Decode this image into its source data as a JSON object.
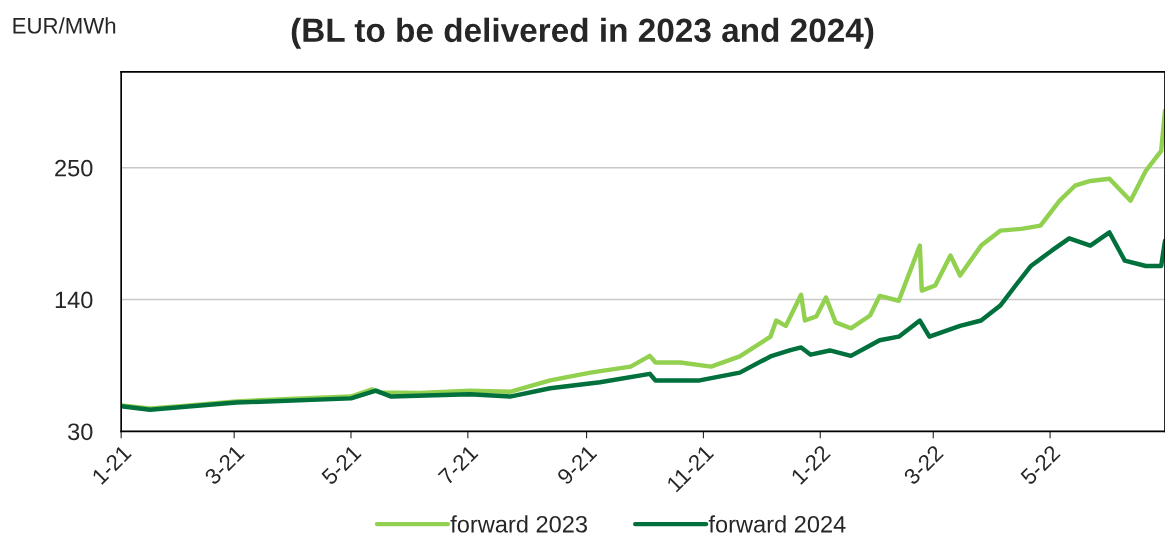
{
  "chart_data": {
    "type": "line",
    "title": "(BL to be delivered in 2023 and 2024)",
    "ylabel": "EUR/MWh",
    "ylim": [
      30,
      330
    ],
    "yticks": [
      30,
      140,
      250
    ],
    "xlim": [
      "2021-01-01",
      "2022-06-30"
    ],
    "xticks": [
      {
        "value": "2021-01-01",
        "label": "1-21"
      },
      {
        "value": "2021-03-01",
        "label": "3-21"
      },
      {
        "value": "2021-05-01",
        "label": "5-21"
      },
      {
        "value": "2021-07-01",
        "label": "7-21"
      },
      {
        "value": "2021-09-01",
        "label": "9-21"
      },
      {
        "value": "2021-11-01",
        "label": "11-21"
      },
      {
        "value": "2022-01-01",
        "label": "1-22"
      },
      {
        "value": "2022-03-01",
        "label": "3-22"
      },
      {
        "value": "2022-05-01",
        "label": "5-22"
      }
    ],
    "grid": "y",
    "legend": "bottom",
    "marker": "none",
    "line_style": "solid",
    "series": [
      {
        "name": "forward 2023",
        "color": "#92d050",
        "x": [
          "2021-01-01",
          "2021-01-16",
          "2021-02-01",
          "2021-03-02",
          "2021-04-05",
          "2021-05-01",
          "2021-05-12",
          "2021-05-16",
          "2021-06-06",
          "2021-07-02",
          "2021-07-23",
          "2021-08-13",
          "2021-09-03",
          "2021-09-24",
          "2021-10-04",
          "2021-10-07",
          "2021-10-20",
          "2021-11-05",
          "2021-11-20",
          "2021-12-06",
          "2021-12-09",
          "2021-12-14",
          "2021-12-22",
          "2021-12-24",
          "2021-12-30",
          "2022-01-04",
          "2022-01-09",
          "2022-01-17",
          "2022-01-27",
          "2022-02-01",
          "2022-02-11",
          "2022-02-22",
          "2022-02-23",
          "2022-03-02",
          "2022-03-10",
          "2022-03-15",
          "2022-03-26",
          "2022-04-05",
          "2022-04-16",
          "2022-04-26",
          "2022-05-06",
          "2022-05-14",
          "2022-05-22",
          "2022-06-01",
          "2022-06-12",
          "2022-06-20",
          "2022-06-28",
          "2022-06-30"
        ],
        "values": [
          51.7,
          49,
          51,
          55,
          57.5,
          59,
          65,
          62.5,
          62,
          64,
          63,
          72.5,
          79,
          84,
          93,
          87.5,
          87.5,
          84,
          92.5,
          109,
          122.5,
          118,
          144,
          122.5,
          126,
          141.7,
          121,
          116,
          126.7,
          143,
          139,
          185,
          147.5,
          151.7,
          176.7,
          160,
          185,
          197.5,
          199,
          201.7,
          222.5,
          235,
          239,
          240.8,
          222.5,
          247.5,
          264,
          297.5
        ]
      },
      {
        "name": "forward 2024",
        "color": "#00703c",
        "x": [
          "2021-01-01",
          "2021-01-16",
          "2021-03-02",
          "2021-05-01",
          "2021-05-14",
          "2021-05-22",
          "2021-07-02",
          "2021-07-23",
          "2021-08-13",
          "2021-09-08",
          "2021-10-04",
          "2021-10-07",
          "2021-10-30",
          "2021-11-20",
          "2021-12-06",
          "2021-12-16",
          "2021-12-22",
          "2021-12-27",
          "2022-01-06",
          "2022-01-17",
          "2022-01-27",
          "2022-02-01",
          "2022-02-11",
          "2022-02-22",
          "2022-02-27",
          "2022-03-15",
          "2022-03-26",
          "2022-04-05",
          "2022-04-13",
          "2022-04-21",
          "2022-05-02",
          "2022-05-11",
          "2022-05-22",
          "2022-06-01",
          "2022-06-09",
          "2022-06-20",
          "2022-06-28",
          "2022-06-30"
        ],
        "values": [
          51,
          48,
          54,
          57.5,
          64,
          59,
          61,
          59,
          66,
          71,
          78,
          72.5,
          72.5,
          79,
          92.5,
          97.5,
          100,
          94,
          97.5,
          93,
          101.7,
          106,
          109,
          122.5,
          109,
          118,
          122.5,
          135,
          151.7,
          168,
          181,
          191,
          185,
          196,
          172.5,
          168,
          168,
          189
        ]
      }
    ]
  }
}
